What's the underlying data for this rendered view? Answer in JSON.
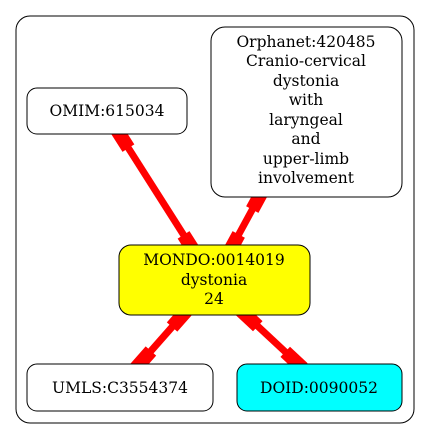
{
  "nodes": {
    "omim": {
      "lines": [
        "OMIM:615034"
      ],
      "fill": "#ffffff"
    },
    "orphanet": {
      "lines": [
        "Orphanet:420485",
        "Cranio-cervical",
        "dystonia",
        "with",
        "laryngeal",
        "and",
        "upper-limb",
        "involvement"
      ],
      "fill": "#ffffff"
    },
    "mondo": {
      "lines": [
        "MONDO:0014019",
        "dystonia",
        "24"
      ],
      "fill": "#ffff00"
    },
    "umls": {
      "lines": [
        "UMLS:C3554374"
      ],
      "fill": "#ffffff"
    },
    "doid": {
      "lines": [
        "DOID:0090052"
      ],
      "fill": "#00ffff"
    }
  },
  "edges": [
    {
      "from": "omim",
      "to": "mondo"
    },
    {
      "from": "orphanet",
      "to": "mondo"
    },
    {
      "from": "mondo",
      "to": "umls"
    },
    {
      "from": "mondo",
      "to": "doid"
    }
  ],
  "colors": {
    "edge": "#ff0000",
    "stroke": "#000000"
  }
}
